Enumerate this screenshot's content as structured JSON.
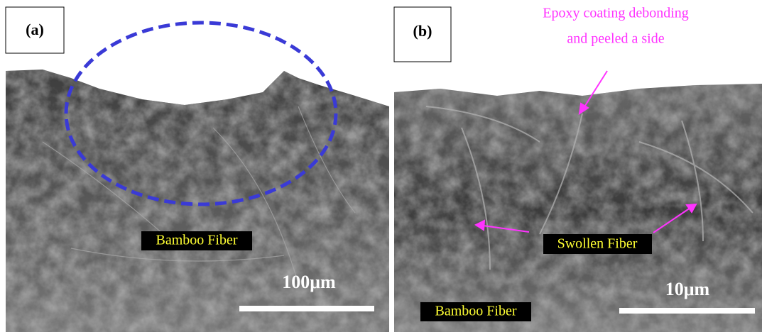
{
  "panels": [
    {
      "label": "(a)",
      "annotations": [
        "Bamboo Fiber"
      ],
      "scale_bar": "100μm"
    },
    {
      "label": "(b)",
      "callout": [
        "Epoxy coating debonding",
        "and peeled a side"
      ],
      "annotations": [
        "Swollen Fiber",
        "Bamboo Fiber"
      ],
      "scale_bar": "10μm"
    }
  ]
}
